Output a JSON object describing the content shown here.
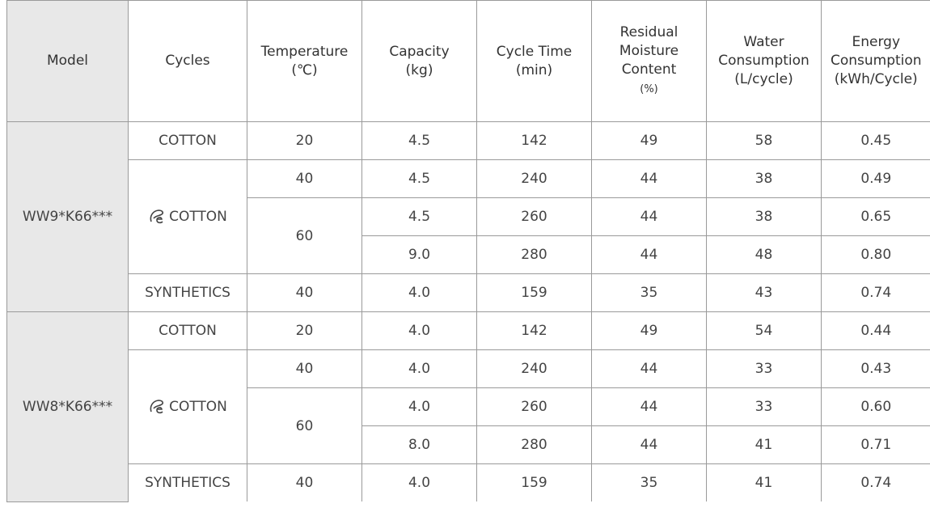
{
  "headers": {
    "model": "Model",
    "cycles": "Cycles",
    "temperature_1": "Temperature",
    "temperature_2": "(℃)",
    "capacity_1": "Capacity",
    "capacity_2": "(kg)",
    "cycle_time_1": "Cycle Time",
    "cycle_time_2": "(min)",
    "residual_1": "Residual",
    "residual_2": "Moisture",
    "residual_3": "Content",
    "residual_4": "(%)",
    "water_1": "Water",
    "water_2": "Consumption",
    "water_3": "(L/cycle)",
    "energy_1": "Energy",
    "energy_2": "Consumption",
    "energy_3": "(kWh/Cycle)"
  },
  "groups": [
    {
      "model": "WW9*K66***",
      "cotton": {
        "cycle": "COTTON",
        "temperature": "20",
        "capacity": "4.5",
        "cycle_time": "142",
        "residual": "49",
        "water": "58",
        "energy": "0.45"
      },
      "eco_cycle": "COTTON",
      "eco40": {
        "temperature": "40",
        "capacity": "4.5",
        "cycle_time": "240",
        "residual": "44",
        "water": "38",
        "energy": "0.49"
      },
      "eco60_temperature": "60",
      "eco60a": {
        "capacity": "4.5",
        "cycle_time": "260",
        "residual": "44",
        "water": "38",
        "energy": "0.65"
      },
      "eco60b": {
        "capacity": "9.0",
        "cycle_time": "280",
        "residual": "44",
        "water": "48",
        "energy": "0.80"
      },
      "synthetics": {
        "cycle": "SYNTHETICS",
        "temperature": "40",
        "capacity": "4.0",
        "cycle_time": "159",
        "residual": "35",
        "water": "43",
        "energy": "0.74"
      }
    },
    {
      "model": "WW8*K66***",
      "cotton": {
        "cycle": "COTTON",
        "temperature": "20",
        "capacity": "4.0",
        "cycle_time": "142",
        "residual": "49",
        "water": "54",
        "energy": "0.44"
      },
      "eco_cycle": "COTTON",
      "eco40": {
        "temperature": "40",
        "capacity": "4.0",
        "cycle_time": "240",
        "residual": "44",
        "water": "33",
        "energy": "0.43"
      },
      "eco60_temperature": "60",
      "eco60a": {
        "capacity": "4.0",
        "cycle_time": "260",
        "residual": "44",
        "water": "33",
        "energy": "0.60"
      },
      "eco60b": {
        "capacity": "8.0",
        "cycle_time": "280",
        "residual": "44",
        "water": "41",
        "energy": "0.71"
      },
      "synthetics": {
        "cycle": "SYNTHETICS",
        "temperature": "40",
        "capacity": "4.0",
        "cycle_time": "159",
        "residual": "35",
        "water": "41",
        "energy": "0.74"
      }
    }
  ],
  "icons": {
    "eco": "eco-bubble-icon"
  }
}
